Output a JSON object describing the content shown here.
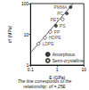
{
  "chart_data": {
    "type": "scatter",
    "x_label": "E (GPa)",
    "y_label": "σf (MPa)",
    "caption": "The line corresponds to the\nrelationship: σf = 25E",
    "log": true,
    "grid": false,
    "legend": "lower right",
    "xlim": [
      0.1,
      10
    ],
    "xticks": [
      0.1,
      1,
      10
    ],
    "ylim": [
      1,
      100
    ],
    "yticks": [
      1,
      10,
      100
    ],
    "series": [
      {
        "name": "Amorphous",
        "type": "scatter",
        "marker": "circle",
        "color": "#222222",
        "x": [
          3.2,
          2.3,
          0.9
        ],
        "values": [
          77,
          48,
          19
        ],
        "labels": [
          "PMMA",
          "PC",
          "PS"
        ]
      },
      {
        "name": "Semi-crystalline",
        "type": "scatter",
        "marker": "open_circle",
        "color": "#222222",
        "x": [
          1.6,
          0.55,
          0.35,
          0.2
        ],
        "values": [
          31,
          12,
          7.7,
          4.9
        ],
        "labels": [
          "PET",
          "PP",
          "HDPE",
          "LDPE"
        ]
      },
      {
        "type": "line",
        "line_style": "solid",
        "color": "#444444",
        "x": [
          0.1,
          4
        ],
        "values": [
          2.5,
          100
        ]
      }
    ]
  }
}
